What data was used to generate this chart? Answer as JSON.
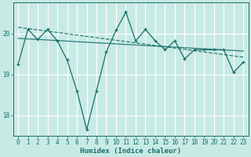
{
  "bg_color": "#c8eae5",
  "grid_color": "#ffffff",
  "line_color": "#1a6e6a",
  "xlabel": "Humidex (Indice chaleur)",
  "xlabel_fontsize": 6.5,
  "tick_fontsize": 5.5,
  "ylim": [
    17.5,
    20.75
  ],
  "xlim": [
    -0.5,
    23.5
  ],
  "yticks": [
    18,
    19,
    20
  ],
  "xticks": [
    0,
    1,
    2,
    3,
    4,
    5,
    6,
    7,
    8,
    9,
    10,
    11,
    12,
    13,
    14,
    15,
    16,
    17,
    18,
    19,
    20,
    21,
    22,
    23
  ],
  "jagged_x": [
    0,
    1,
    2,
    3,
    4,
    5,
    6,
    7,
    8,
    9,
    10,
    11,
    12,
    13,
    14,
    15,
    16,
    17,
    18,
    19,
    20,
    21,
    22,
    23
  ],
  "jagged_y": [
    19.25,
    20.1,
    19.85,
    20.1,
    19.82,
    19.35,
    18.6,
    17.65,
    18.6,
    19.55,
    20.08,
    20.52,
    19.82,
    20.1,
    19.82,
    19.6,
    19.82,
    19.38,
    19.6,
    19.6,
    19.6,
    19.6,
    19.05,
    19.3
  ],
  "trend1_x": [
    0,
    23
  ],
  "trend1_y": [
    20.15,
    19.42
  ],
  "trend2_x": [
    0,
    23
  ],
  "trend2_y": [
    19.88,
    19.57
  ]
}
